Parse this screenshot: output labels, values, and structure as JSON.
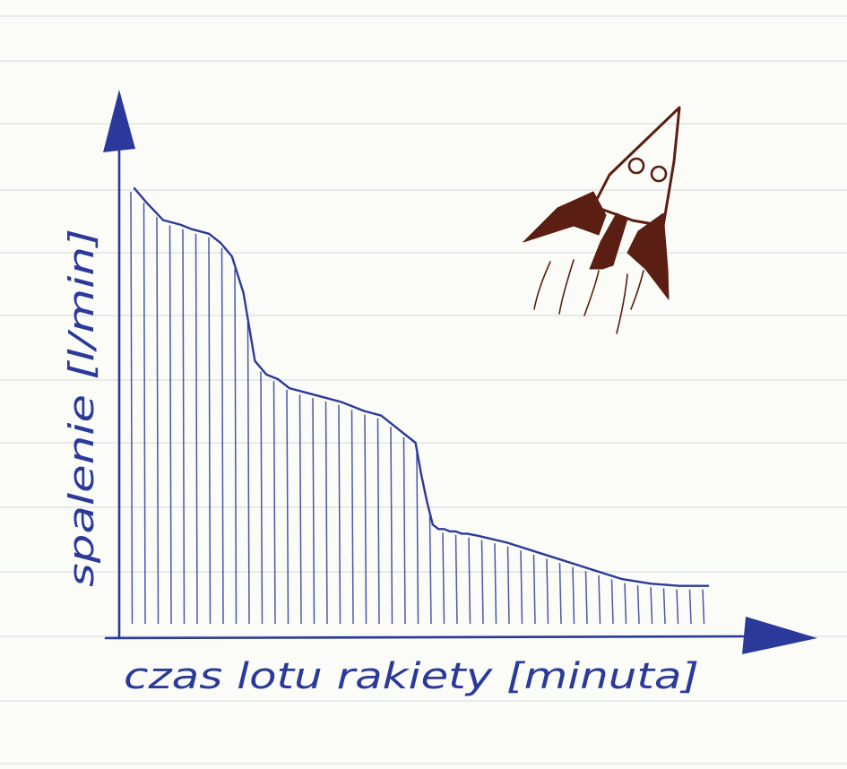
{
  "colors": {
    "paper": "#fbfcf7",
    "rule_line": "#dfe3e6",
    "ink": "#2b3a9a",
    "rocket_ink": "#5a1e12"
  },
  "chart_data": {
    "type": "area",
    "title": "",
    "xlabel": "czas lotu rakiety [minuta]",
    "ylabel": "spalenie [l/min]",
    "x": [
      0,
      2,
      5,
      8,
      10,
      13,
      15,
      17,
      19,
      21,
      23,
      25,
      27,
      30,
      33,
      36,
      38,
      40,
      43,
      46,
      49,
      50,
      51,
      52,
      53,
      54,
      55,
      56,
      57,
      58,
      60,
      65,
      70,
      75,
      80,
      85,
      90,
      95,
      100
    ],
    "y": [
      99,
      96,
      92,
      91,
      90,
      89,
      87,
      84,
      76,
      61,
      58,
      57,
      55,
      54,
      53,
      52,
      51,
      50,
      49,
      46,
      43,
      36,
      30,
      25,
      24,
      24,
      23.5,
      23.5,
      23,
      23,
      22.5,
      21,
      19,
      17,
      15,
      13,
      12,
      11.5,
      11.5
    ],
    "xlim": [
      0,
      100
    ],
    "ylim": [
      0,
      100
    ],
    "hatching": "vertical",
    "grid": false,
    "legend": "none"
  },
  "icons": {
    "rocket": "rocket-icon"
  }
}
